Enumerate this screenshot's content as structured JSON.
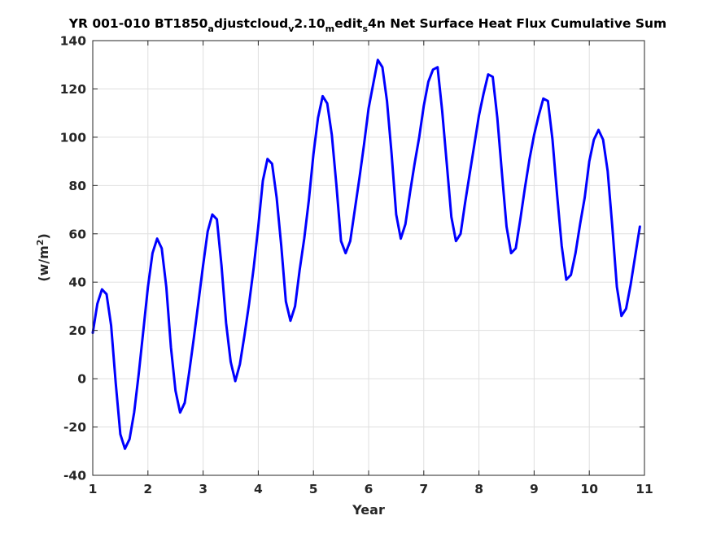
{
  "chart_data": {
    "type": "line",
    "title": {
      "part1": "YR 001-010 BT1850",
      "sub1": "a",
      "part2": "djustcloud",
      "sub2": "v",
      "part3": "2.10",
      "sub3": "m",
      "part4": "edit",
      "sub4": "s",
      "part5": "4n Net Surface Heat Flux  Cumulative Sum"
    },
    "xlabel": "Year",
    "ylabel": {
      "prefix": "(w/m",
      "sup": "2",
      "suffix": ")"
    },
    "xlim": [
      1,
      11
    ],
    "ylim": [
      -40,
      140
    ],
    "xticks": [
      "1",
      "2",
      "3",
      "4",
      "5",
      "6",
      "7",
      "8",
      "9",
      "10",
      "11"
    ],
    "yticks": [
      "-40",
      "-20",
      "0",
      "20",
      "40",
      "60",
      "80",
      "100",
      "120",
      "140"
    ],
    "grid": true,
    "line_color": "#0000ff",
    "series": [
      {
        "x": [
          1.0,
          1.083,
          1.167,
          1.25,
          1.333,
          1.417,
          1.5,
          1.583,
          1.667,
          1.75,
          1.833,
          1.917,
          2.0,
          2.083,
          2.167,
          2.25,
          2.333,
          2.417,
          2.5,
          2.583,
          2.667,
          2.75,
          2.833,
          2.917,
          3.0,
          3.083,
          3.167,
          3.25,
          3.333,
          3.417,
          3.5,
          3.583,
          3.667,
          3.75,
          3.833,
          3.917,
          4.0,
          4.083,
          4.167,
          4.25,
          4.333,
          4.417,
          4.5,
          4.583,
          4.667,
          4.75,
          4.833,
          4.917,
          5.0,
          5.083,
          5.167,
          5.25,
          5.333,
          5.417,
          5.5,
          5.583,
          5.667,
          5.75,
          5.833,
          5.917,
          6.0,
          6.083,
          6.167,
          6.25,
          6.333,
          6.417,
          6.5,
          6.583,
          6.667,
          6.75,
          6.833,
          6.917,
          7.0,
          7.083,
          7.167,
          7.25,
          7.333,
          7.417,
          7.5,
          7.583,
          7.667,
          7.75,
          7.833,
          7.917,
          8.0,
          8.083,
          8.167,
          8.25,
          8.333,
          8.417,
          8.5,
          8.583,
          8.667,
          8.75,
          8.833,
          8.917,
          9.0,
          9.083,
          9.167,
          9.25,
          9.333,
          9.417,
          9.5,
          9.583,
          9.667,
          9.75,
          9.833,
          9.917,
          10.0,
          10.083,
          10.167,
          10.25,
          10.333,
          10.417,
          10.5,
          10.583,
          10.667,
          10.75,
          10.833,
          10.917
        ],
        "y": [
          19,
          31,
          37,
          35,
          22,
          -2,
          -23,
          -29,
          -25,
          -14,
          2,
          20,
          38,
          52,
          58,
          54,
          38,
          13,
          -5,
          -14,
          -10,
          3,
          17,
          32,
          47,
          61,
          68,
          66,
          47,
          23,
          7,
          -1,
          6,
          18,
          31,
          46,
          63,
          82,
          91,
          89,
          75,
          55,
          32,
          24,
          30,
          45,
          58,
          74,
          93,
          108,
          117,
          114,
          101,
          80,
          57,
          52,
          57,
          70,
          83,
          97,
          112,
          122,
          132,
          129,
          115,
          93,
          68,
          58,
          64,
          77,
          89,
          100,
          113,
          123,
          128,
          129,
          111,
          89,
          67,
          57,
          60,
          73,
          85,
          97,
          109,
          118,
          126,
          125,
          108,
          85,
          63,
          52,
          54,
          66,
          79,
          91,
          101,
          109,
          116,
          115,
          99,
          76,
          55,
          41,
          43,
          52,
          64,
          75,
          90,
          99,
          103,
          99,
          86,
          63,
          38,
          26,
          29,
          39,
          51,
          63
        ]
      }
    ]
  }
}
